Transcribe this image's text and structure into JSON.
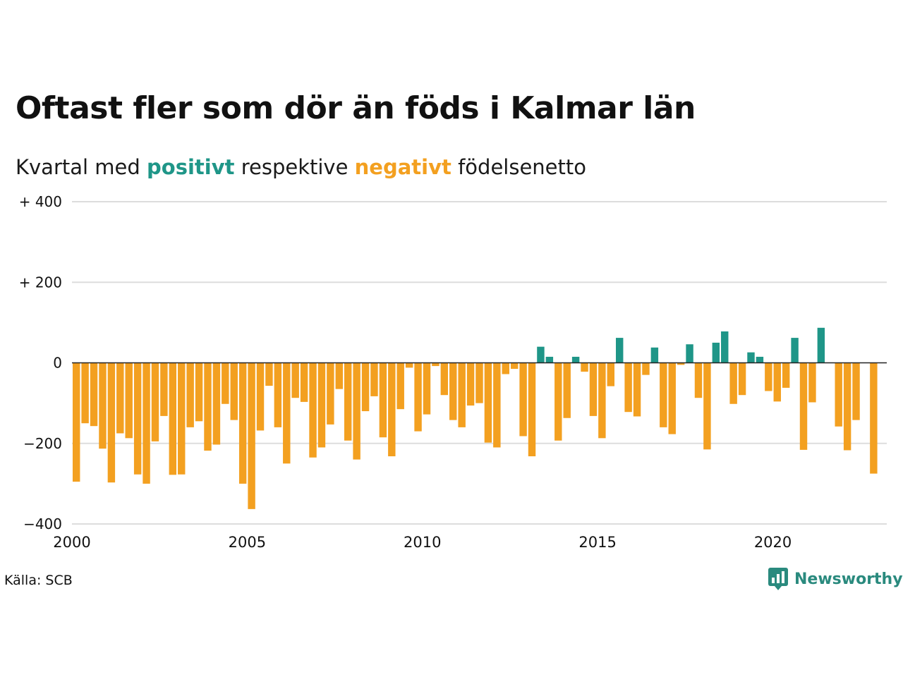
{
  "title": "Oftast fler som dör än föds i Kalmar län",
  "subtitle": {
    "prefix": "Kvartal med",
    "positive": "positivt",
    "middle": "respektive",
    "negative": "negativt",
    "suffix": "födelsenetto"
  },
  "source": "Källa: SCB",
  "brand": "Newsworthy",
  "colors": {
    "positive": "#1f9688",
    "negative": "#f3a020",
    "grid": "#dddddd",
    "axis": "#222222"
  },
  "chart_data": {
    "type": "bar",
    "title": "Oftast fler som dör än föds i Kalmar län",
    "xlabel": "",
    "ylabel": "",
    "ylim": [
      -400,
      400
    ],
    "xlim": [
      2000,
      2023.25
    ],
    "yticks": [
      {
        "value": 400,
        "label": "+ 400"
      },
      {
        "value": 200,
        "label": "+ 200"
      },
      {
        "value": 0,
        "label": "0"
      },
      {
        "value": -200,
        "label": "−200"
      },
      {
        "value": -400,
        "label": "−400"
      }
    ],
    "xticks": [
      {
        "value": 2000,
        "label": "2000"
      },
      {
        "value": 2005,
        "label": "2005"
      },
      {
        "value": 2010,
        "label": "2010"
      },
      {
        "value": 2015,
        "label": "2015"
      },
      {
        "value": 2020,
        "label": "2020"
      }
    ],
    "grid": true,
    "x_start_year": 2000,
    "periods_per_year": 4,
    "values": [
      -295,
      -150,
      -157,
      -213,
      -297,
      -175,
      -187,
      -277,
      -300,
      -195,
      -132,
      -278,
      -277,
      -160,
      -145,
      -218,
      -203,
      -102,
      -142,
      -300,
      -363,
      -168,
      -57,
      -160,
      -250,
      -87,
      -97,
      -235,
      -210,
      -153,
      -65,
      -193,
      -240,
      -120,
      -83,
      -185,
      -232,
      -115,
      -12,
      -170,
      -128,
      -8,
      -80,
      -142,
      -160,
      -106,
      -100,
      -198,
      -210,
      -28,
      -15,
      -182,
      -232,
      40,
      15,
      -193,
      -137,
      15,
      -22,
      -132,
      -187,
      -58,
      62,
      -122,
      -133,
      -30,
      38,
      -160,
      -177,
      -5,
      46,
      -87,
      -215,
      50,
      78,
      -102,
      -80,
      26,
      15,
      -70,
      -96,
      -62,
      62,
      -216,
      -98,
      87,
      1,
      -158,
      -217,
      -142,
      0,
      -275
    ]
  }
}
